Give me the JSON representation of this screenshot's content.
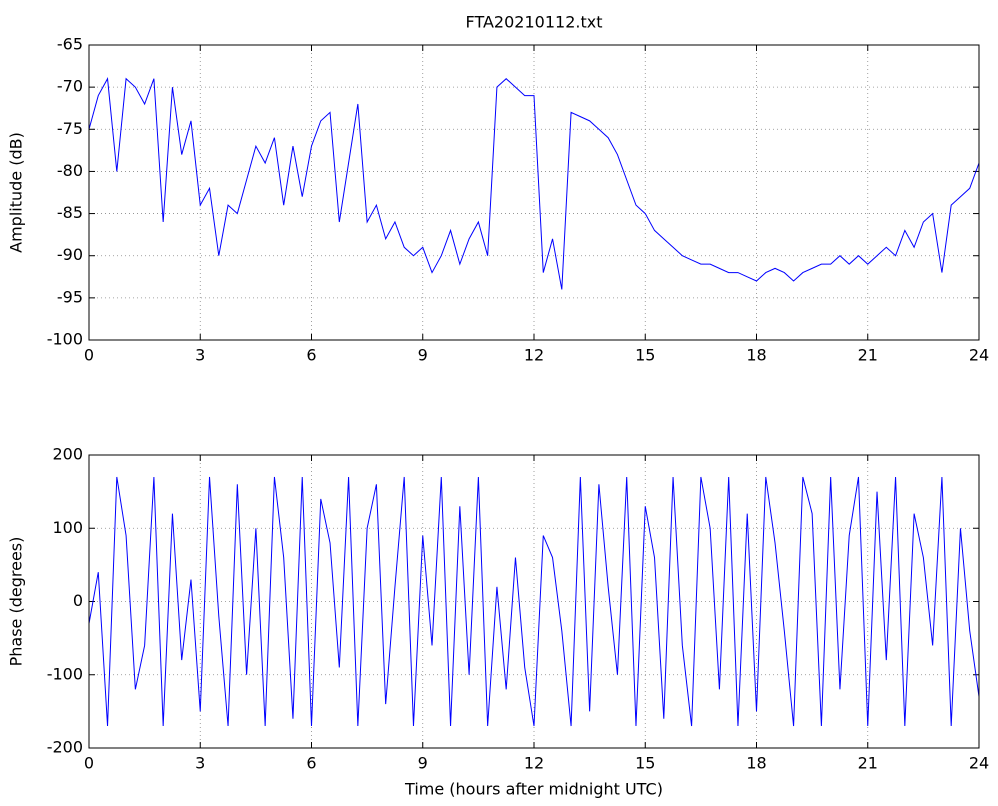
{
  "chart_data": [
    {
      "type": "line",
      "title": "FTA20210112.txt",
      "y_label": "Amplitude (dB)",
      "grid": true,
      "xlim": [
        0,
        24
      ],
      "xticks": [
        0,
        3,
        6,
        9,
        12,
        15,
        18,
        21,
        24
      ],
      "ylim": [
        -100,
        -65
      ],
      "yticks": [
        -100,
        -95,
        -90,
        -85,
        -80,
        -75,
        -70,
        -65
      ],
      "x": [
        0,
        0.25,
        0.5,
        0.75,
        1,
        1.25,
        1.5,
        1.75,
        2,
        2.25,
        2.5,
        2.75,
        3,
        3.25,
        3.5,
        3.75,
        4,
        4.25,
        4.5,
        4.75,
        5,
        5.25,
        5.5,
        5.75,
        6,
        6.25,
        6.5,
        6.75,
        7,
        7.25,
        7.5,
        7.75,
        8,
        8.25,
        8.5,
        8.75,
        9,
        9.25,
        9.5,
        9.75,
        10,
        10.25,
        10.5,
        10.75,
        11,
        11.25,
        11.5,
        11.75,
        12,
        12.25,
        12.5,
        12.75,
        13,
        13.25,
        13.5,
        13.75,
        14,
        14.25,
        14.5,
        14.75,
        15,
        15.25,
        15.5,
        15.75,
        16,
        16.25,
        16.5,
        16.75,
        17,
        17.25,
        17.5,
        17.75,
        18,
        18.25,
        18.5,
        18.75,
        19,
        19.25,
        19.5,
        19.75,
        20,
        20.25,
        20.5,
        20.75,
        21,
        21.25,
        21.5,
        21.75,
        22,
        22.25,
        22.5,
        22.75,
        23,
        23.25,
        23.5,
        23.75,
        24
      ],
      "series": [
        {
          "color": "#0000ff",
          "values": [
            -75,
            -71,
            -69,
            -80,
            -69,
            -70,
            -72,
            -69,
            -86,
            -70,
            -78,
            -74,
            -84,
            -82,
            -90,
            -84,
            -85,
            -81,
            -77,
            -79,
            -76,
            -84,
            -77,
            -83,
            -77,
            -74,
            -73,
            -86,
            -79,
            -72,
            -86,
            -84,
            -88,
            -86,
            -89,
            -90,
            -89,
            -92,
            -90,
            -87,
            -91,
            -88,
            -86,
            -90,
            -70,
            -69,
            -70,
            -71,
            -71,
            -92,
            -88,
            -94,
            -73,
            -73.5,
            -74,
            -75,
            -76,
            -78,
            -81,
            -84,
            -85,
            -87,
            -88,
            -89,
            -90,
            -90.5,
            -91,
            -91,
            -91.5,
            -92,
            -92,
            -92.5,
            -93,
            -92,
            -91.5,
            -92,
            -93,
            -92,
            -91.5,
            -91,
            -91,
            -90,
            -91,
            -90,
            -91,
            -90,
            -89,
            -90,
            -87,
            -89,
            -86,
            -85,
            -92,
            -84,
            -83,
            -82,
            -79
          ]
        }
      ]
    },
    {
      "type": "line",
      "x_label": "Time (hours after midnight UTC)",
      "y_label": "Phase (degrees)",
      "grid": true,
      "xlim": [
        0,
        24
      ],
      "xticks": [
        0,
        3,
        6,
        9,
        12,
        15,
        18,
        21,
        24
      ],
      "ylim": [
        -200,
        200
      ],
      "yticks": [
        -200,
        -100,
        0,
        100,
        200
      ],
      "x": [
        0,
        0.25,
        0.5,
        0.75,
        1,
        1.25,
        1.5,
        1.75,
        2,
        2.25,
        2.5,
        2.75,
        3,
        3.25,
        3.5,
        3.75,
        4,
        4.25,
        4.5,
        4.75,
        5,
        5.25,
        5.5,
        5.75,
        6,
        6.25,
        6.5,
        6.75,
        7,
        7.25,
        7.5,
        7.75,
        8,
        8.25,
        8.5,
        8.75,
        9,
        9.25,
        9.5,
        9.75,
        10,
        10.25,
        10.5,
        10.75,
        11,
        11.25,
        11.5,
        11.75,
        12,
        12.25,
        12.5,
        12.75,
        13,
        13.25,
        13.5,
        13.75,
        14,
        14.25,
        14.5,
        14.75,
        15,
        15.25,
        15.5,
        15.75,
        16,
        16.25,
        16.5,
        16.75,
        17,
        17.25,
        17.5,
        17.75,
        18,
        18.25,
        18.5,
        18.75,
        19,
        19.25,
        19.5,
        19.75,
        20,
        20.25,
        20.5,
        20.75,
        21,
        21.25,
        21.5,
        21.75,
        22,
        22.25,
        22.5,
        22.75,
        23,
        23.25,
        23.5,
        23.75,
        24
      ],
      "series": [
        {
          "color": "#0000ff",
          "values": [
            -30,
            40,
            -170,
            170,
            90,
            -120,
            -60,
            170,
            -170,
            120,
            -80,
            30,
            -150,
            170,
            -20,
            -170,
            160,
            -100,
            100,
            -170,
            170,
            60,
            -160,
            170,
            -170,
            140,
            80,
            -90,
            170,
            -170,
            100,
            160,
            -140,
            20,
            170,
            -170,
            90,
            -60,
            170,
            -170,
            130,
            -100,
            170,
            -170,
            20,
            -120,
            60,
            -90,
            -170,
            90,
            60,
            -40,
            -170,
            170,
            -150,
            160,
            20,
            -100,
            170,
            -170,
            130,
            60,
            -160,
            170,
            -60,
            -170,
            170,
            100,
            -120,
            170,
            -170,
            120,
            -150,
            170,
            80,
            -40,
            -170,
            170,
            120,
            -170,
            170,
            -120,
            90,
            170,
            -170,
            150,
            -80,
            170,
            -170,
            120,
            60,
            -60,
            170,
            -170,
            100,
            -40,
            -130
          ]
        }
      ]
    }
  ]
}
